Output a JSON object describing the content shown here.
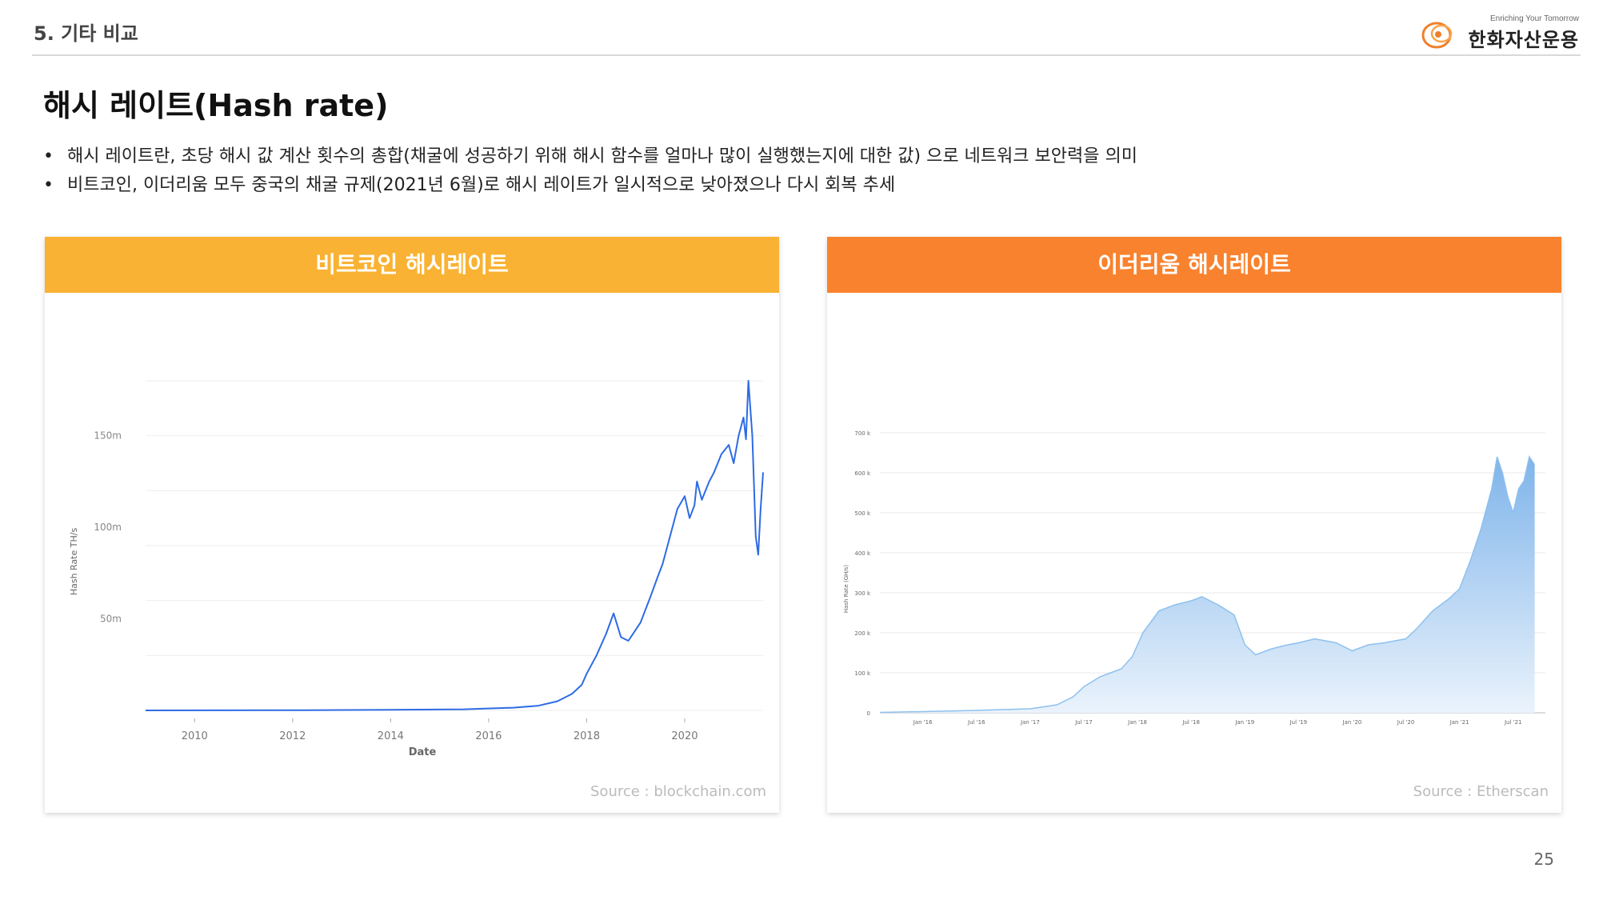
{
  "header": {
    "section": "5. 기타 비교",
    "logo_tagline": "Enriching Your Tomorrow",
    "logo_name": "한화자산운용"
  },
  "title": "해시 레이트(Hash rate)",
  "bullets": [
    "해시 레이트란, 초당 해시 값 계산 횟수의 총합(채굴에 성공하기 위해 해시 함수를 얼마나 많이 실행했는지에 대한 값) 으로 네트워크 보안력을 의미",
    "비트코인, 이더리움 모두 중국의 채굴 규제(2021년 6월)로 해시 레이트가 일시적으로 낮아졌으나 다시 회복 추세"
  ],
  "colors": {
    "btc_header": "#F9B233",
    "eth_header": "#F9822E",
    "btc_line": "#2D6BE4",
    "eth_line": "#8EC0EE"
  },
  "cards": {
    "btc": {
      "header": "비트코인 해시레이트",
      "source": "Source : blockchain.com"
    },
    "eth": {
      "header": "이더리움 해시레이트",
      "source": "Source : Etherscan"
    }
  },
  "chart_data": [
    {
      "type": "line",
      "title": "비트코인 해시레이트",
      "xlabel": "Date",
      "ylabel": "Hash Rate TH/s",
      "x_ticks": [
        "2010",
        "2012",
        "2014",
        "2016",
        "2018",
        "2020"
      ],
      "y_ticks": [
        "50m",
        "100m",
        "150m"
      ],
      "xlim": [
        2009.0,
        2021.6
      ],
      "ylim": [
        0,
        180
      ],
      "grid": true,
      "series": [
        {
          "x": [
            2009.0,
            2012.0,
            2014.0,
            2015.5,
            2016.5,
            2017.0,
            2017.4,
            2017.7,
            2017.9,
            2018.0,
            2018.2,
            2018.4,
            2018.55,
            2018.7,
            2018.85,
            2018.95,
            2019.1,
            2019.3,
            2019.45,
            2019.55,
            2019.7,
            2019.85,
            2020.0,
            2020.1,
            2020.2,
            2020.25,
            2020.35,
            2020.5,
            2020.6,
            2020.75,
            2020.9,
            2021.0,
            2021.1,
            2021.2,
            2021.25,
            2021.3,
            2021.38,
            2021.45,
            2021.5,
            2021.55,
            2021.6
          ],
          "y": [
            0,
            0.1,
            0.3,
            0.6,
            1.5,
            2.5,
            5,
            9,
            14,
            20,
            30,
            42,
            53,
            40,
            38,
            42,
            48,
            62,
            73,
            80,
            95,
            110,
            117,
            105,
            112,
            125,
            115,
            125,
            130,
            140,
            145,
            135,
            150,
            160,
            148,
            180,
            150,
            95,
            85,
            110,
            130
          ]
        }
      ]
    },
    {
      "type": "area",
      "title": "이더리움 해시레이트",
      "xlabel": "",
      "ylabel": "Hash Rate (GH/s)",
      "x_ticks": [
        "Jan '16",
        "Jul '16",
        "Jan '17",
        "Jul '17",
        "Jan '18",
        "Jul '18",
        "Jan '19",
        "Jul '19",
        "Jan '20",
        "Jul '20",
        "Jan '21",
        "Jul '21"
      ],
      "y_ticks": [
        "0",
        "100 k",
        "200 k",
        "300 k",
        "400 k",
        "500 k",
        "600 k",
        "700 k"
      ],
      "xlim": [
        2015.6,
        2021.8
      ],
      "ylim": [
        0,
        700
      ],
      "grid": true,
      "series": [
        {
          "x": [
            2015.6,
            2016.0,
            2016.5,
            2017.0,
            2017.25,
            2017.4,
            2017.5,
            2017.65,
            2017.75,
            2017.85,
            2017.95,
            2018.05,
            2018.2,
            2018.35,
            2018.5,
            2018.6,
            2018.75,
            2018.9,
            2019.0,
            2019.1,
            2019.25,
            2019.4,
            2019.5,
            2019.65,
            2019.85,
            2020.0,
            2020.15,
            2020.3,
            2020.5,
            2020.6,
            2020.75,
            2020.9,
            2021.0,
            2021.1,
            2021.2,
            2021.3,
            2021.35,
            2021.4,
            2021.45,
            2021.5,
            2021.55,
            2021.6,
            2021.65,
            2021.7
          ],
          "y": [
            1,
            3,
            6,
            10,
            20,
            40,
            65,
            90,
            100,
            110,
            140,
            200,
            255,
            270,
            280,
            290,
            270,
            245,
            170,
            145,
            160,
            170,
            175,
            185,
            175,
            155,
            170,
            175,
            185,
            210,
            255,
            285,
            310,
            380,
            460,
            560,
            640,
            600,
            540,
            500,
            560,
            580,
            640,
            620
          ]
        }
      ]
    }
  ],
  "page_number": "25"
}
